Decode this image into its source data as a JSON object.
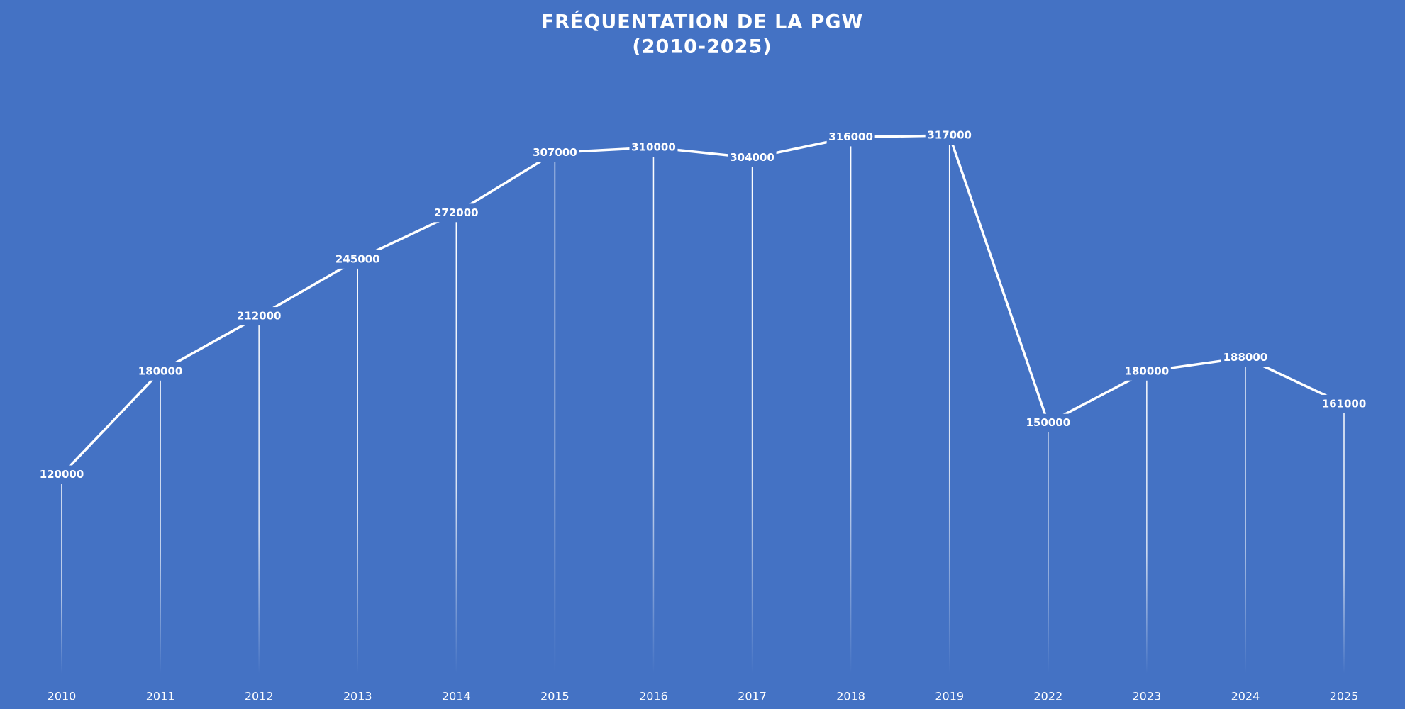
{
  "chart_data": {
    "type": "line",
    "title": "FRÉQUENTATION DE LA PGW",
    "subtitle": "(2010-2025)",
    "categories": [
      "2010",
      "2011",
      "2012",
      "2013",
      "2014",
      "2015",
      "2016",
      "2017",
      "2018",
      "2019",
      "2022",
      "2023",
      "2024",
      "2025"
    ],
    "values": [
      120000,
      180000,
      212000,
      245000,
      272000,
      307000,
      310000,
      304000,
      316000,
      317000,
      150000,
      180000,
      188000,
      161000
    ],
    "color": "#ffffff",
    "background": "#4472c4"
  }
}
